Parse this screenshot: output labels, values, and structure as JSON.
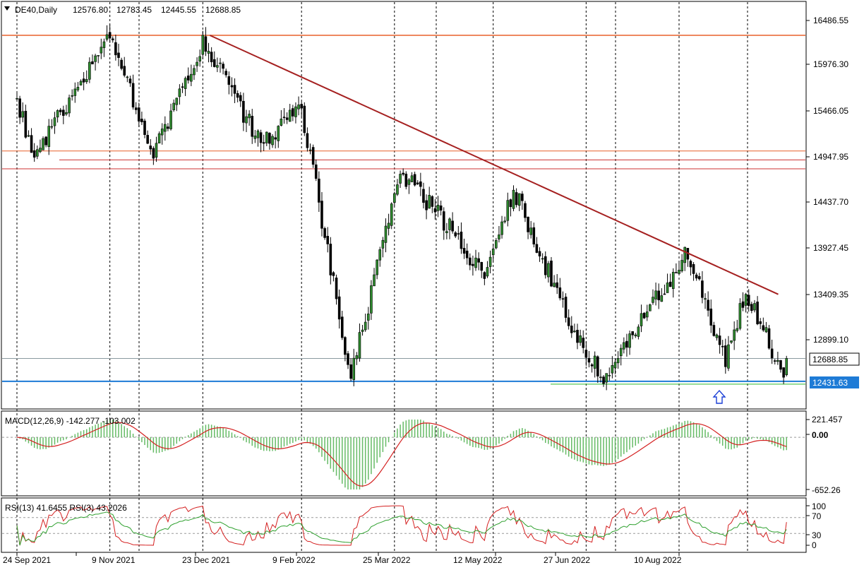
{
  "header": {
    "symbol": "DE40,Daily",
    "open": "12576.80",
    "high": "12783.45",
    "low": "12445.55",
    "close": "12688.85"
  },
  "price_axis_labels": [
    "16486.55",
    "15976.30",
    "15466.05",
    "14947.95",
    "14437.70",
    "13927.45",
    "13409.35",
    "12899.10"
  ],
  "price_badges": {
    "last_price": "12688.85",
    "support": "12431.63"
  },
  "macd": {
    "label": "MACD(12,26,9) -142.277 -103.002",
    "axis_labels": [
      "221.457",
      "0.00",
      "-652.26"
    ]
  },
  "rsi": {
    "label": "RSI(13) 41.6455  RSI(3) 43.2026",
    "axis_labels": [
      "100",
      "70",
      "30",
      "0"
    ]
  },
  "date_labels": [
    "24 Sep 2021",
    "9 Nov 2021",
    "23 Dec 2021",
    "9 Feb 2022",
    "25 Mar 2022",
    "12 May 2022",
    "27 Jun 2022",
    "10 Aug 2022"
  ],
  "colors": {
    "bull_candle": "#2e8b2e",
    "bear_candle": "#000000",
    "resistance_line": "#e8602c",
    "level_line": "#cc3333",
    "trendline": "#a52020",
    "support_line": "#1e7bd6",
    "green_line": "#2eb82e",
    "macd_hist": "#66bb66",
    "macd_signal": "#d42020",
    "rsi13": "#2ea02e",
    "rsi3": "#d42020",
    "arrow": "#1a3fd6"
  },
  "chart_data": {
    "type": "candlestick",
    "instrument": "DE40",
    "timeframe": "Daily",
    "price_range": [
      12230,
      16640
    ],
    "last_close": 12688.85,
    "horizontal_levels": [
      16320,
      15020,
      14920,
      14820,
      12431.63,
      12400
    ],
    "trendline": {
      "from": [
        "23 Dec 2021",
        16320
      ],
      "to": [
        "9 Sep 2022",
        13330
      ]
    },
    "swing_points": [
      {
        "date": "24 Sep 2021",
        "price": 15600
      },
      {
        "date": "4 Oct 2021",
        "price": 14950
      },
      {
        "date": "9 Nov 2021",
        "price": 16300
      },
      {
        "date": "30 Nov 2021",
        "price": 15000
      },
      {
        "date": "23 Dec 2021",
        "price": 16250
      },
      {
        "date": "20 Jan 2022",
        "price": 15100
      },
      {
        "date": "9 Feb 2022",
        "price": 15500
      },
      {
        "date": "4 Mar 2022",
        "price": 12470
      },
      {
        "date": "29 Mar 2022",
        "price": 14800
      },
      {
        "date": "20 Apr 2022",
        "price": 14200
      },
      {
        "date": "9 May 2022",
        "price": 13600
      },
      {
        "date": "23 May 2022",
        "price": 14600
      },
      {
        "date": "17 Jun 2022",
        "price": 13100
      },
      {
        "date": "5 Jul 2022",
        "price": 12450
      },
      {
        "date": "15 Aug 2022",
        "price": 13900
      },
      {
        "date": "1 Sep 2022",
        "price": 12650
      },
      {
        "date": "12 Sep 2022",
        "price": 13450
      },
      {
        "date": "29 Sep 2022",
        "price": 12500
      },
      {
        "date": "30 Sep 2022",
        "price": 12688.85
      }
    ],
    "macd": {
      "params": [
        12,
        26,
        9
      ],
      "main": -142.277,
      "signal": -103.002,
      "range": [
        -652.26,
        221.457
      ]
    },
    "rsi": {
      "rsi13": 41.6455,
      "rsi3": 43.2026,
      "levels": [
        30,
        70
      ],
      "range": [
        0,
        100
      ]
    }
  }
}
